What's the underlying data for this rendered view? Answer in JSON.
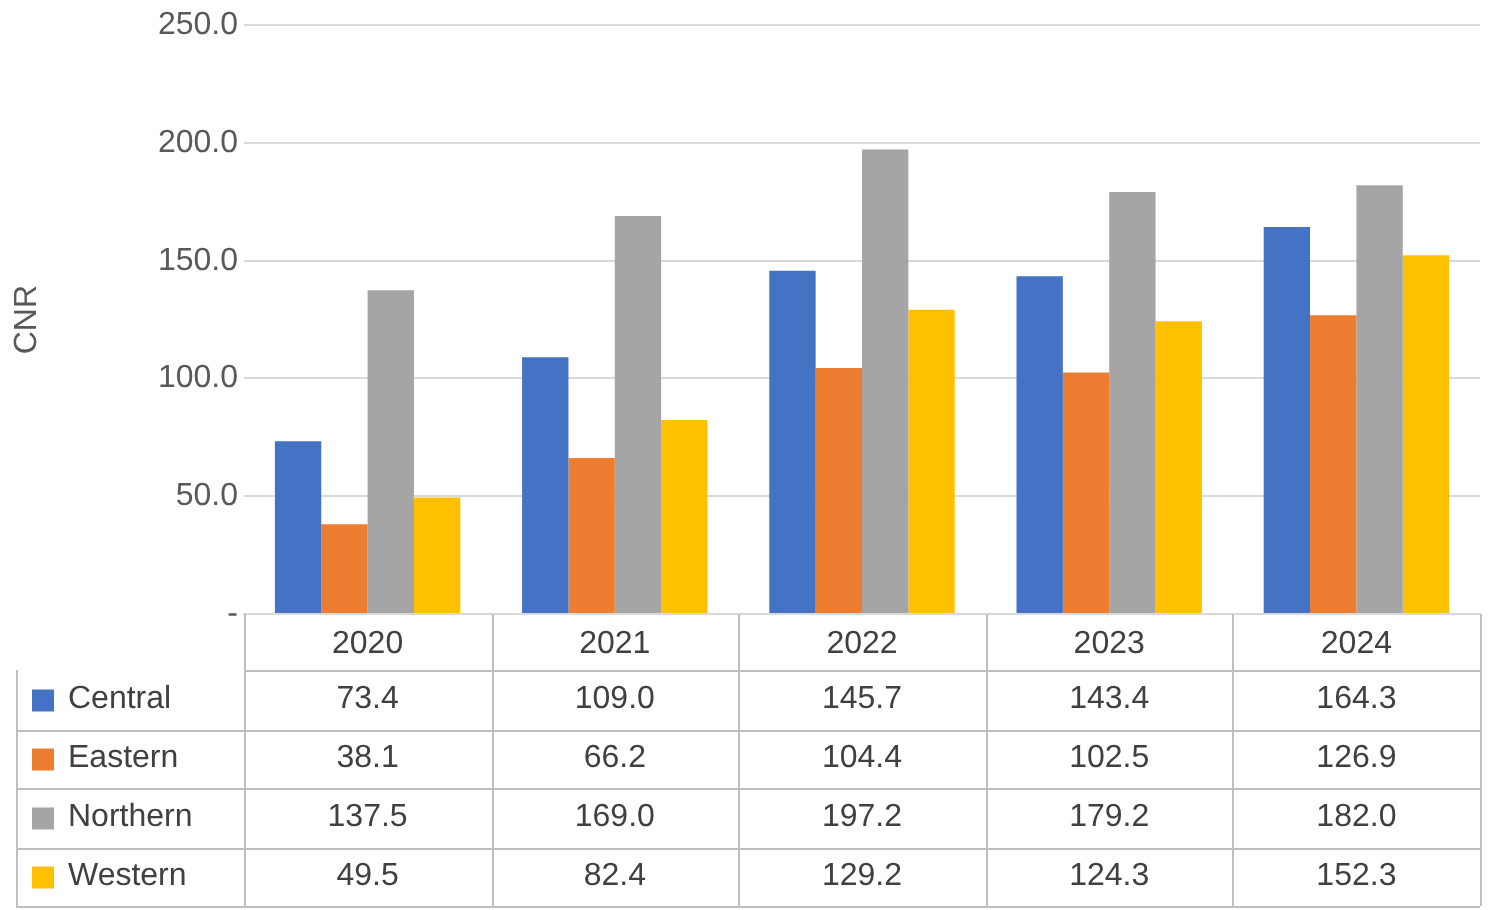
{
  "chart_data": {
    "type": "bar",
    "ylabel": "CNR",
    "categories": [
      "2020",
      "2021",
      "2022",
      "2023",
      "2024"
    ],
    "series": [
      {
        "name": "Central",
        "color": "#4472c4",
        "values": [
          73.4,
          109.0,
          145.7,
          143.4,
          164.3
        ],
        "value_labels": [
          "73.4",
          "109.0",
          "145.7",
          "143.4",
          "164.3"
        ]
      },
      {
        "name": "Eastern",
        "color": "#ed7d31",
        "values": [
          38.1,
          66.2,
          104.4,
          102.5,
          126.9
        ],
        "value_labels": [
          "38.1",
          "66.2",
          "104.4",
          "102.5",
          "126.9"
        ]
      },
      {
        "name": "Northern",
        "color": "#a5a5a5",
        "values": [
          137.5,
          169.0,
          197.2,
          179.2,
          182.0
        ],
        "value_labels": [
          "137.5",
          "169.0",
          "197.2",
          "179.2",
          "182.0"
        ]
      },
      {
        "name": "Western",
        "color": "#ffc000",
        "values": [
          49.5,
          82.4,
          129.2,
          124.3,
          152.3
        ],
        "value_labels": [
          "49.5",
          "82.4",
          "129.2",
          "124.3",
          "152.3"
        ]
      }
    ],
    "ylim": [
      0,
      250
    ],
    "yticks": [
      {
        "value": 0,
        "label": "-"
      },
      {
        "value": 50,
        "label": "50.0"
      },
      {
        "value": 100,
        "label": "100.0"
      },
      {
        "value": 150,
        "label": "150.0"
      },
      {
        "value": 200,
        "label": "200.0"
      },
      {
        "value": 250,
        "label": "250.0"
      }
    ],
    "grid": "y",
    "legend": "bottom"
  }
}
